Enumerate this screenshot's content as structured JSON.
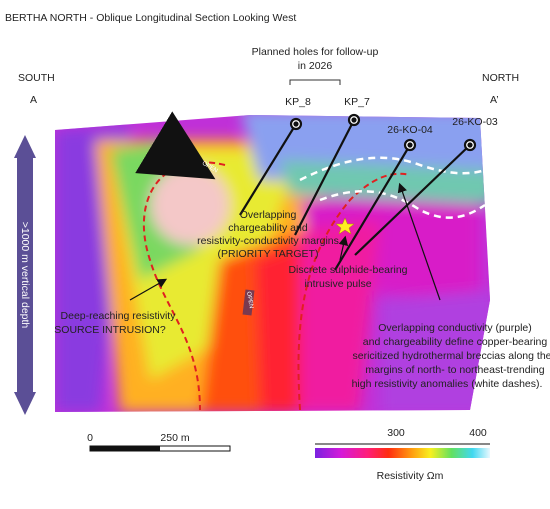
{
  "header": {
    "title": "BERTHA NORTH - Oblique Longitudinal Section Looking West"
  },
  "section": {
    "left": {
      "direction": "SOUTH",
      "label": "A"
    },
    "right": {
      "direction": "NORTH",
      "label": "A’"
    },
    "planned": [
      "Planned holes for follow-up",
      "in 2026"
    ],
    "holes": [
      "KP_8",
      "KP_7",
      "26-KO-04",
      "26-KO-03"
    ],
    "depth": ">1000 m vertical depth",
    "open": [
      "OPEN",
      "OPEN"
    ]
  },
  "annotations": {
    "priority": [
      "Overlapping",
      "chargeability and",
      "resistivity-conductivity margins",
      "(PRIORITY TARGET)"
    ],
    "pulse": [
      "Discrete sulphide-bearing",
      "intrusive pulse"
    ],
    "source": [
      "Deep-reaching resistivity",
      "SOURCE INTRUSION?"
    ],
    "breccia": [
      "Overlapping conductivity (purple)",
      "and chargeability define copper-bearing",
      "sericitized hydrothermal breccias along the",
      "margins of north- to northeast-trending",
      "high resistivity anomalies (white dashes)."
    ]
  },
  "scale_bar": {
    "start": "0",
    "end": "250 m"
  },
  "colorbar": {
    "ticks": [
      "300",
      "400"
    ],
    "label": "Resistivity Ωm"
  }
}
